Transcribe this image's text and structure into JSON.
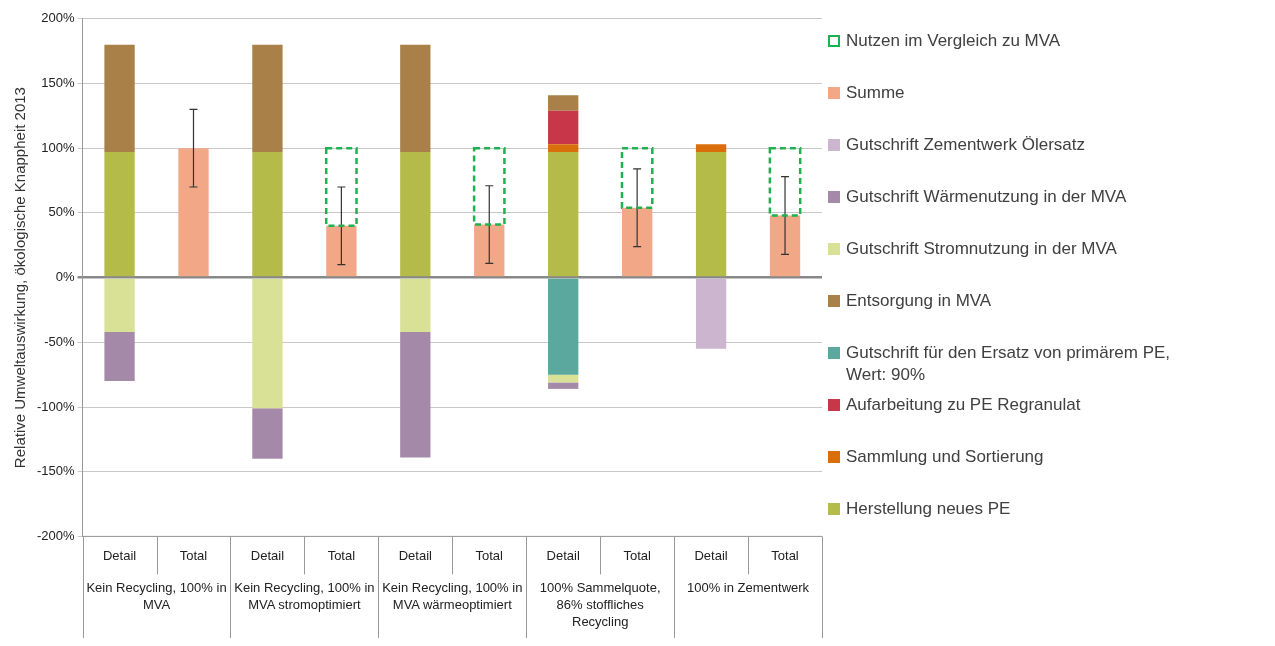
{
  "chart_data": {
    "type": "bar",
    "stacked": true,
    "ylabel": "Relative Umweltauswirkung, ökologische Knappheit 2013",
    "categories": [
      "Detail",
      "Total",
      "Detail",
      "Total",
      "Detail",
      "Total",
      "Detail",
      "Total",
      "Detail",
      "Total"
    ],
    "annotations": [
      "Kein Recycling, 100% in MVA",
      "Kein Recycling, 100% in MVA stromoptimiert",
      "Kein Recycling, 100% in MVA wärmeoptimiert",
      "100% Sammelquote, 86% stoffliches Recycling",
      "100% in Zementwerk"
    ],
    "series": [
      {
        "name": "Herstellung neues PE",
        "color": "#b5bb48",
        "values": [
          97,
          null,
          97,
          null,
          97,
          null,
          97,
          null,
          97,
          null
        ]
      },
      {
        "name": "Sammlung und Sortierung",
        "color": "#d96f0a",
        "values": [
          null,
          null,
          null,
          null,
          null,
          null,
          6,
          null,
          6,
          null
        ]
      },
      {
        "name": "Aufarbeitung zu PE Regranulat",
        "color": "#c83649",
        "values": [
          null,
          null,
          null,
          null,
          null,
          null,
          26,
          null,
          null,
          null
        ]
      },
      {
        "name": "Gutschrift für den Ersatz von primärem PE, Wert: 90%",
        "color": "#5aa89e",
        "values": [
          null,
          null,
          null,
          null,
          null,
          null,
          -75,
          null,
          null,
          null
        ]
      },
      {
        "name": "Entsorgung in MVA",
        "color": "#a88048",
        "values": [
          83,
          null,
          83,
          null,
          83,
          null,
          12,
          null,
          null,
          null
        ]
      },
      {
        "name": "Gutschrift Stromnutzung in der MVA",
        "color": "#d9e196",
        "values": [
          -42,
          null,
          -101,
          null,
          -42,
          null,
          -6,
          null,
          null,
          null
        ]
      },
      {
        "name": "Gutschrift Wärmenutzung in der MVA",
        "color": "#a48aa8",
        "values": [
          -38,
          null,
          -39,
          null,
          -97,
          null,
          -5,
          null,
          null,
          null
        ]
      },
      {
        "name": "Gutschrift Zementwerk Ölersatz",
        "color": "#ccb6cf",
        "values": [
          null,
          null,
          null,
          null,
          null,
          null,
          null,
          null,
          -55,
          null
        ]
      },
      {
        "name": "Summe",
        "color": "#f2a886",
        "values": [
          null,
          100,
          null,
          40,
          null,
          41,
          null,
          54,
          null,
          48
        ],
        "errors": [
          null,
          30,
          null,
          30,
          null,
          30,
          null,
          30,
          null,
          30
        ]
      },
      {
        "name": "Nutzen im Vergleich zu MVA",
        "color": "#1fb050",
        "line_style": "dashed",
        "base": [
          null,
          null,
          null,
          40,
          null,
          41,
          null,
          54,
          null,
          48
        ],
        "values": [
          null,
          null,
          null,
          60,
          null,
          59,
          null,
          46,
          null,
          52
        ]
      }
    ],
    "ylim": [
      -200,
      200
    ],
    "yticks": [
      {
        "value": -200,
        "label": "-200%"
      },
      {
        "value": -150,
        "label": "-150%"
      },
      {
        "value": -100,
        "label": "-100%"
      },
      {
        "value": -50,
        "label": "-50%"
      },
      {
        "value": 0,
        "label": "0%"
      },
      {
        "value": 50,
        "label": "50%"
      },
      {
        "value": 100,
        "label": "100%"
      },
      {
        "value": 150,
        "label": "150%"
      },
      {
        "value": 200,
        "label": "200%"
      }
    ],
    "grid": "y",
    "legend": "right"
  }
}
